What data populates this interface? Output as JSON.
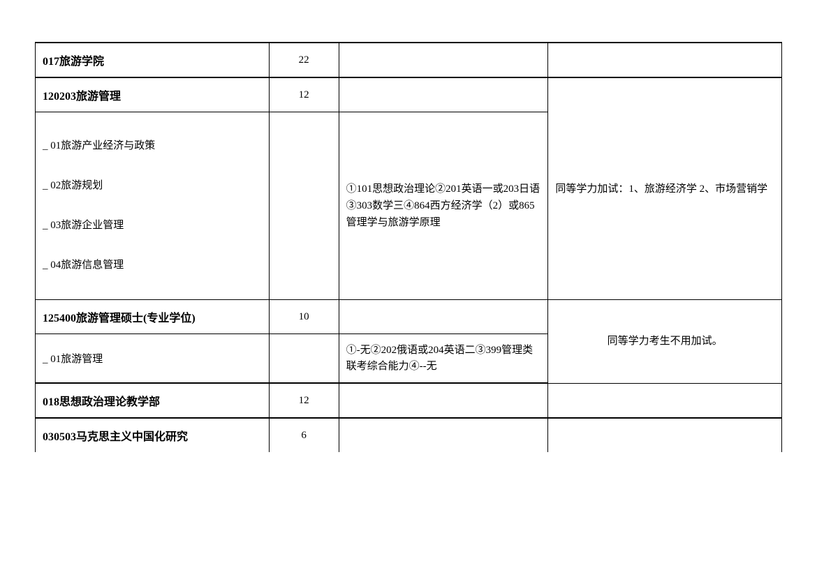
{
  "rows": {
    "header1": {
      "label": "017旅游学院",
      "count": "22"
    },
    "major1": {
      "label": "120203旅游管理",
      "count": "12"
    },
    "directions1": [
      "_ 01旅游产业经济与政策",
      "_ 02旅游规划",
      "_ 03旅游企业管理",
      "_ 04旅游信息管理"
    ],
    "subjects1": "①101思想政治理论②201英语一或203日语③303数学三④864西方经济学（2）或865管理学与旅游学原理",
    "remark1": "同等学力加试：1、旅游经济学 2、市场营销学",
    "major2": {
      "label": "125400旅游管理硕士(专业学位)",
      "count": "10"
    },
    "direction2": "_ 01旅游管理",
    "subjects2": "①-无②202俄语或204英语二③399管理类联考综合能力④--无",
    "remark2": "同等学力考生不用加试。",
    "header2": {
      "label": "018思想政治理论教学部",
      "count": "12"
    },
    "major3": {
      "label": "030503马克思主义中国化研究",
      "count": "6"
    }
  },
  "styling": {
    "font_family": "SimSun",
    "border_color": "#000000",
    "background_color": "#ffffff",
    "bold_size": 16,
    "normal_size": 15,
    "heavy_border_width": 2,
    "thin_border_width": 1
  }
}
